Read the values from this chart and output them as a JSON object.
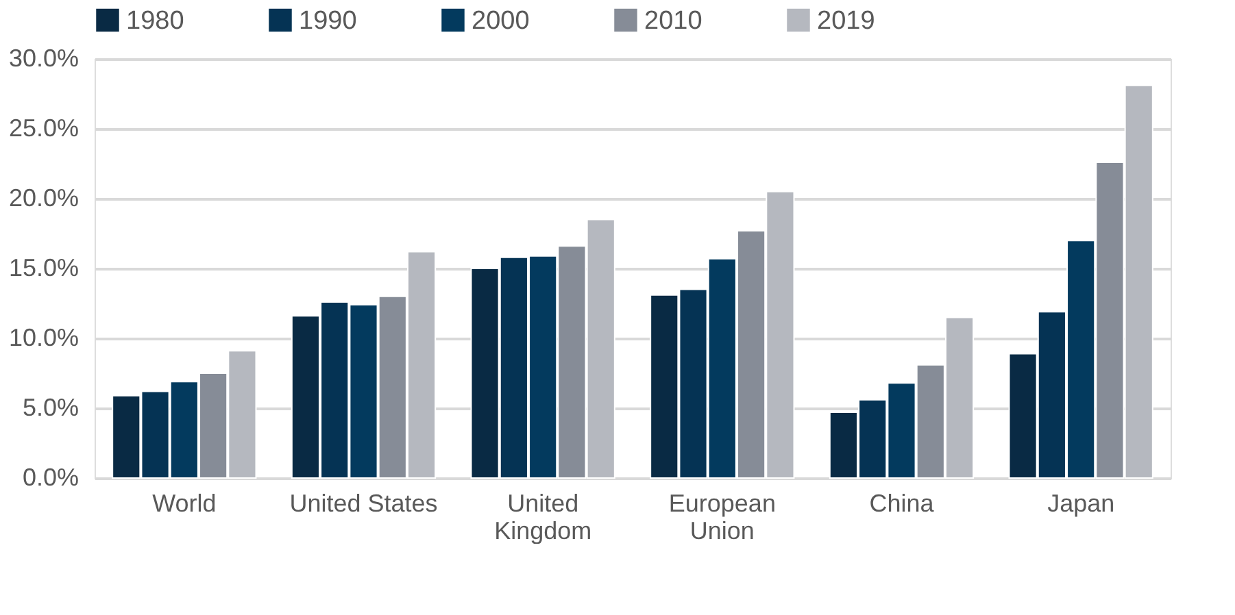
{
  "chart_data": {
    "type": "bar",
    "categories": [
      "World",
      "United States",
      "United Kingdom",
      "European Union",
      "China",
      "Japan"
    ],
    "series": [
      {
        "name": "1980",
        "color": "#092a44",
        "values": [
          5.9,
          11.6,
          15.0,
          13.1,
          4.7,
          8.9
        ]
      },
      {
        "name": "1990",
        "color": "#053354",
        "values": [
          6.2,
          12.6,
          15.8,
          13.5,
          5.6,
          11.9
        ]
      },
      {
        "name": "2000",
        "color": "#033a5e",
        "values": [
          6.9,
          12.4,
          15.9,
          15.7,
          6.8,
          17.0
        ]
      },
      {
        "name": "2010",
        "color": "#868c97",
        "values": [
          7.5,
          13.0,
          16.6,
          17.7,
          8.1,
          22.6
        ]
      },
      {
        "name": "2019",
        "color": "#b5b8bf",
        "values": [
          9.1,
          16.2,
          18.5,
          20.5,
          11.5,
          28.1
        ]
      }
    ],
    "ylim": [
      0,
      30
    ],
    "yticks": [
      {
        "value": 0,
        "label": "0.0%"
      },
      {
        "value": 5,
        "label": "5.0%"
      },
      {
        "value": 10,
        "label": "10.0%"
      },
      {
        "value": 15,
        "label": "15.0%"
      },
      {
        "value": 20,
        "label": "20.0%"
      },
      {
        "value": 25,
        "label": "25.0%"
      },
      {
        "value": 30,
        "label": "30.0%"
      }
    ],
    "grid": "y",
    "legend": "top"
  }
}
